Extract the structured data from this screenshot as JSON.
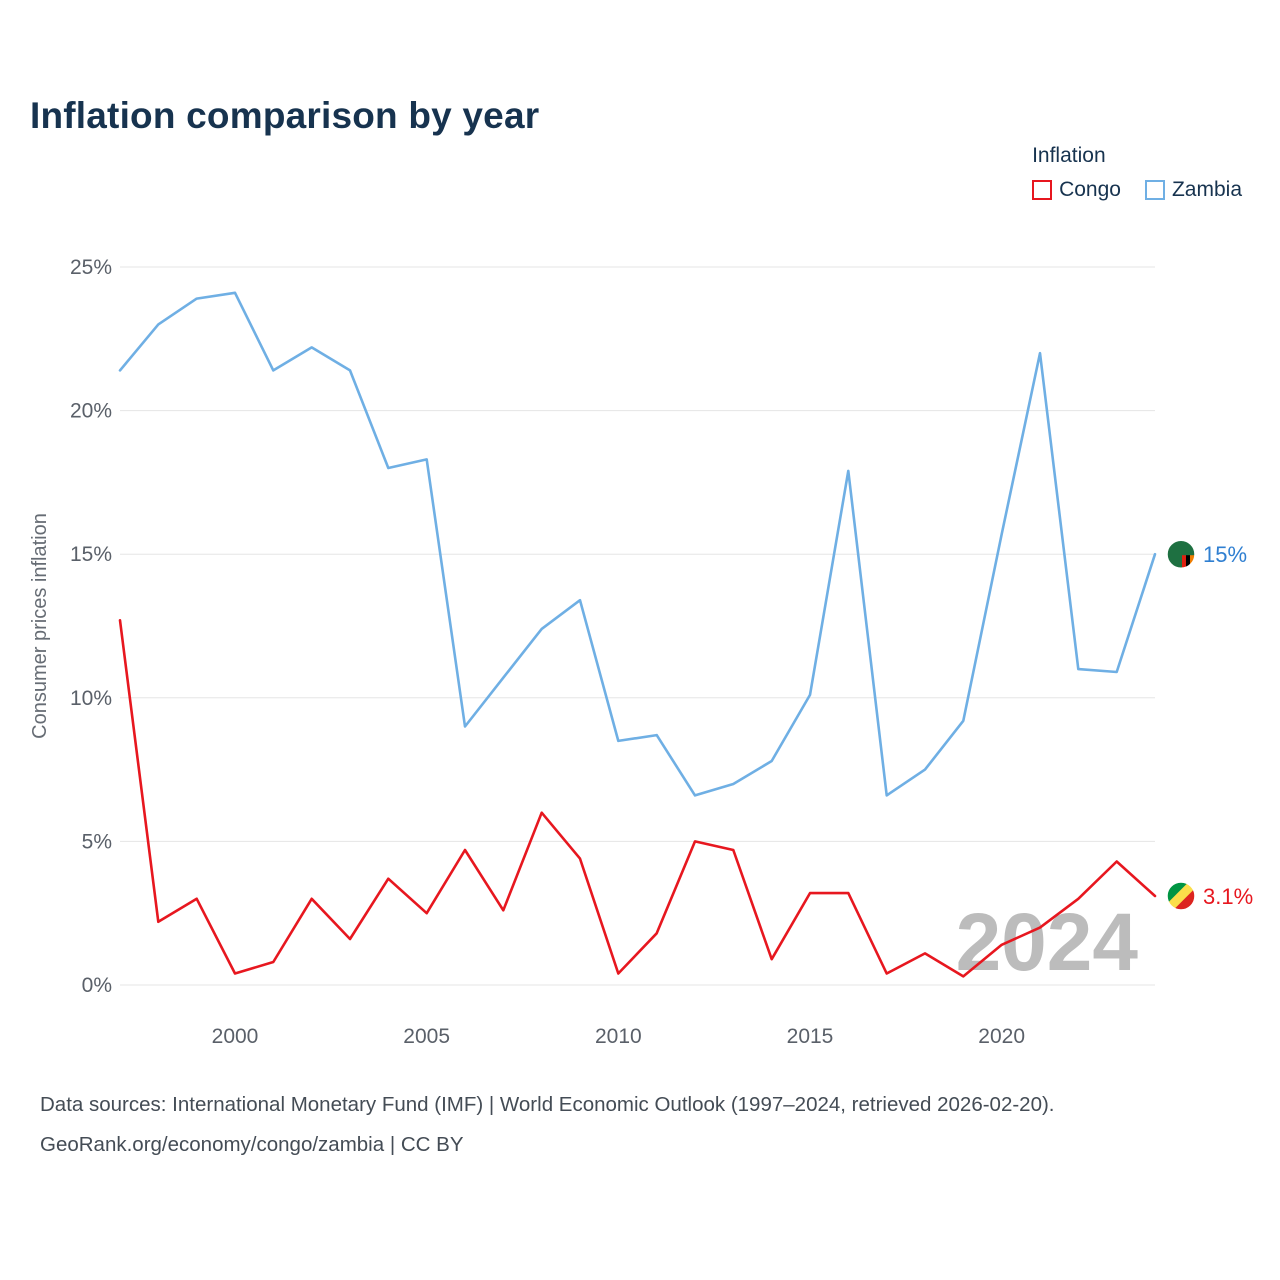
{
  "title": "Inflation comparison by year",
  "legend": {
    "title": "Inflation",
    "items": [
      {
        "label": "Congo",
        "color": "#e7171f"
      },
      {
        "label": "Zambia",
        "color": "#6fafe4"
      }
    ]
  },
  "watermark": "2024",
  "footer": {
    "line1": "Data sources: International Monetary Fund (IMF) | World Economic Outlook (1997–2024, retrieved 2026-02-20).",
    "line2": "GeoRank.org/economy/congo/zambia | CC BY"
  },
  "chart_data": {
    "type": "line",
    "title": "Inflation comparison by year",
    "xlabel": "",
    "ylabel": "Consumer prices inflation",
    "ylim": [
      0,
      25
    ],
    "grid": "horizontal",
    "legend_position": "top-right",
    "ytick_values": [
      0,
      5,
      10,
      15,
      20,
      25
    ],
    "yticks": [
      "0%",
      "5%",
      "10%",
      "15%",
      "20%",
      "25%"
    ],
    "xticks": [
      2000,
      2005,
      2010,
      2015,
      2020
    ],
    "x": [
      1997,
      1998,
      1999,
      2000,
      2001,
      2002,
      2003,
      2004,
      2005,
      2006,
      2007,
      2008,
      2009,
      2010,
      2011,
      2012,
      2013,
      2014,
      2015,
      2016,
      2017,
      2018,
      2019,
      2020,
      2021,
      2022,
      2023,
      2024
    ],
    "series": [
      {
        "name": "Congo",
        "color": "#e7171f",
        "label_color": "#e7171f",
        "end_label": "3.1%",
        "flag_icon": "congo-flag-icon",
        "values": [
          12.7,
          2.2,
          3.0,
          0.4,
          0.8,
          3.0,
          1.6,
          3.7,
          2.5,
          4.7,
          2.6,
          6.0,
          4.4,
          0.4,
          1.8,
          5.0,
          4.7,
          0.9,
          3.2,
          3.2,
          0.4,
          1.1,
          0.3,
          1.4,
          2.0,
          3.0,
          4.3,
          3.1
        ]
      },
      {
        "name": "Zambia",
        "color": "#6fafe4",
        "label_color": "#2f7fd1",
        "end_label": "15%",
        "flag_icon": "zambia-flag-icon",
        "values": [
          21.4,
          23.0,
          23.9,
          24.1,
          21.4,
          22.2,
          21.4,
          18.0,
          18.3,
          9.0,
          10.7,
          12.4,
          13.4,
          8.5,
          8.7,
          6.6,
          7.0,
          7.8,
          10.1,
          17.9,
          6.6,
          7.5,
          9.2,
          15.7,
          22.0,
          11.0,
          10.9,
          15.0
        ]
      }
    ]
  }
}
